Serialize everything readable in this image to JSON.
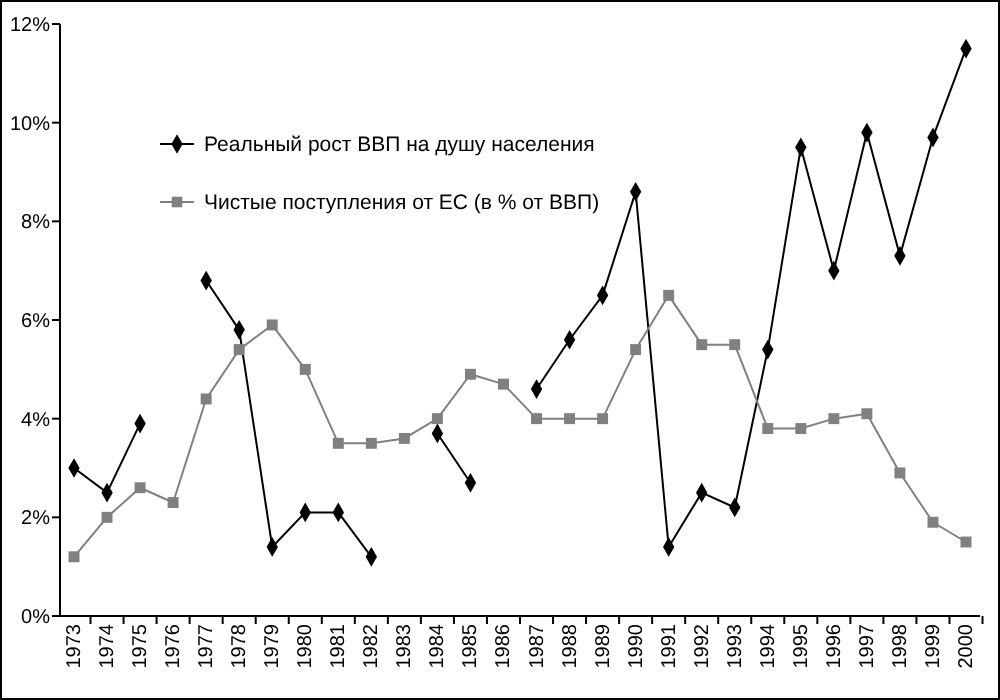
{
  "chart_data": {
    "type": "line",
    "categories": [
      "1973",
      "1974",
      "1975",
      "1976",
      "1977",
      "1978",
      "1979",
      "1980",
      "1981",
      "1982",
      "1983",
      "1984",
      "1985",
      "1986",
      "1987",
      "1988",
      "1989",
      "1990",
      "1991",
      "1992",
      "1993",
      "1994",
      "1995",
      "1996",
      "1997",
      "1998",
      "1999",
      "2000"
    ],
    "series": [
      {
        "name": "Реальный рост ВВП на душу населения",
        "color": "#000000",
        "marker": "diamond",
        "values": [
          3.0,
          2.5,
          3.9,
          null,
          6.8,
          5.8,
          1.4,
          2.1,
          2.1,
          1.2,
          null,
          3.7,
          2.7,
          null,
          4.6,
          5.6,
          6.5,
          8.6,
          1.4,
          2.5,
          2.2,
          5.4,
          9.5,
          7.0,
          9.8,
          7.3,
          9.7,
          11.5
        ]
      },
      {
        "name": "Чистые поступления от ЕС (в % от ВВП)",
        "color": "#808080",
        "marker": "square",
        "values": [
          1.2,
          2.0,
          2.6,
          2.3,
          4.4,
          5.4,
          5.9,
          5.0,
          3.5,
          3.5,
          3.6,
          4.0,
          4.9,
          4.7,
          4.0,
          4.0,
          4.0,
          5.4,
          6.5,
          5.5,
          5.5,
          3.8,
          3.8,
          4.0,
          4.1,
          2.9,
          1.9,
          1.5
        ]
      }
    ],
    "ylim": [
      0,
      12
    ],
    "yticks": [
      {
        "value": 0,
        "label": "0%"
      },
      {
        "value": 2,
        "label": "2%"
      },
      {
        "value": 4,
        "label": "4%"
      },
      {
        "value": 6,
        "label": "6%"
      },
      {
        "value": 8,
        "label": "8%"
      },
      {
        "value": 10,
        "label": "10%"
      },
      {
        "value": 12,
        "label": "12%"
      }
    ],
    "grid": false,
    "legend": "top left",
    "line_style": "solid"
  }
}
